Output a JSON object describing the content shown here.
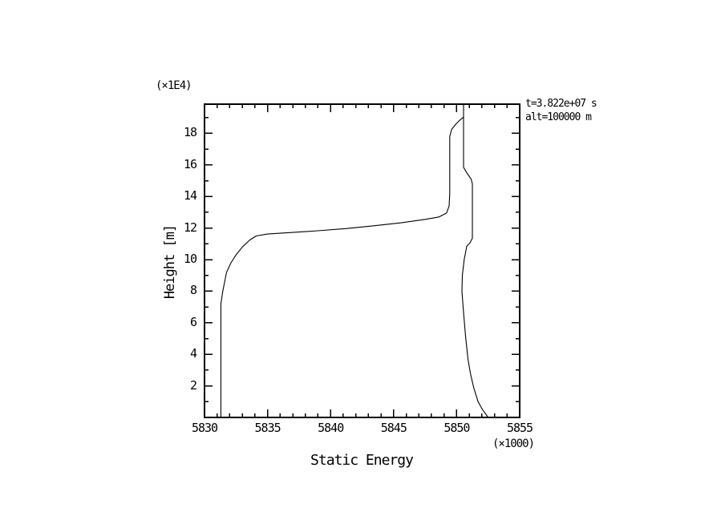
{
  "figure": {
    "background_color": "#ffffff",
    "line_color": "#000000"
  },
  "chart_data": {
    "type": "line",
    "title": "",
    "xlabel": "Static Energy",
    "ylabel": "Height [m]",
    "x_multiplier_label": "(×1000)",
    "y_multiplier_label": "(×1E4)",
    "annotations": [
      "t=3.822e+07 s",
      "alt=100000 m"
    ],
    "xlim": [
      5830,
      5855
    ],
    "ylim": [
      0,
      19.85
    ],
    "x_major_ticks": [
      5830,
      5835,
      5840,
      5845,
      5850,
      5855
    ],
    "x_minor_step": 1,
    "y_major_ticks": [
      2,
      4,
      6,
      8,
      10,
      12,
      14,
      16,
      18
    ],
    "y_minor_step": 1,
    "grid": false,
    "legend": null,
    "marker": "none",
    "series": [
      {
        "name": "lower-profile",
        "points": [
          [
            5831.3,
            0.0
          ],
          [
            5831.3,
            7.2
          ],
          [
            5831.45,
            8.0
          ],
          [
            5831.75,
            9.2
          ],
          [
            5832.1,
            9.8
          ],
          [
            5832.5,
            10.3
          ],
          [
            5833.0,
            10.8
          ],
          [
            5833.6,
            11.25
          ],
          [
            5834.1,
            11.5
          ],
          [
            5835.0,
            11.62
          ],
          [
            5837.0,
            11.72
          ],
          [
            5839.0,
            11.83
          ],
          [
            5841.3,
            11.97
          ],
          [
            5843.5,
            12.15
          ],
          [
            5845.6,
            12.33
          ],
          [
            5847.5,
            12.55
          ],
          [
            5848.6,
            12.7
          ],
          [
            5849.2,
            12.95
          ],
          [
            5849.4,
            13.4
          ],
          [
            5849.45,
            14.2
          ],
          [
            5849.45,
            17.8
          ],
          [
            5849.6,
            18.25
          ],
          [
            5849.9,
            18.55
          ],
          [
            5850.2,
            18.8
          ],
          [
            5850.5,
            19.0
          ],
          [
            5850.55,
            19.05
          ]
        ]
      },
      {
        "name": "upper-profile",
        "points": [
          [
            5850.55,
            19.85
          ],
          [
            5850.55,
            15.85
          ],
          [
            5850.8,
            15.5
          ],
          [
            5851.15,
            15.1
          ],
          [
            5851.25,
            14.8
          ],
          [
            5851.25,
            11.35
          ],
          [
            5851.05,
            11.05
          ],
          [
            5850.8,
            10.85
          ],
          [
            5850.6,
            10.0
          ],
          [
            5850.45,
            9.0
          ],
          [
            5850.42,
            8.0
          ],
          [
            5850.52,
            6.9
          ],
          [
            5850.7,
            5.2
          ],
          [
            5850.9,
            3.7
          ],
          [
            5851.1,
            2.75
          ],
          [
            5851.35,
            1.9
          ],
          [
            5851.7,
            1.0
          ],
          [
            5852.05,
            0.5
          ],
          [
            5852.5,
            0.0
          ]
        ]
      }
    ]
  }
}
